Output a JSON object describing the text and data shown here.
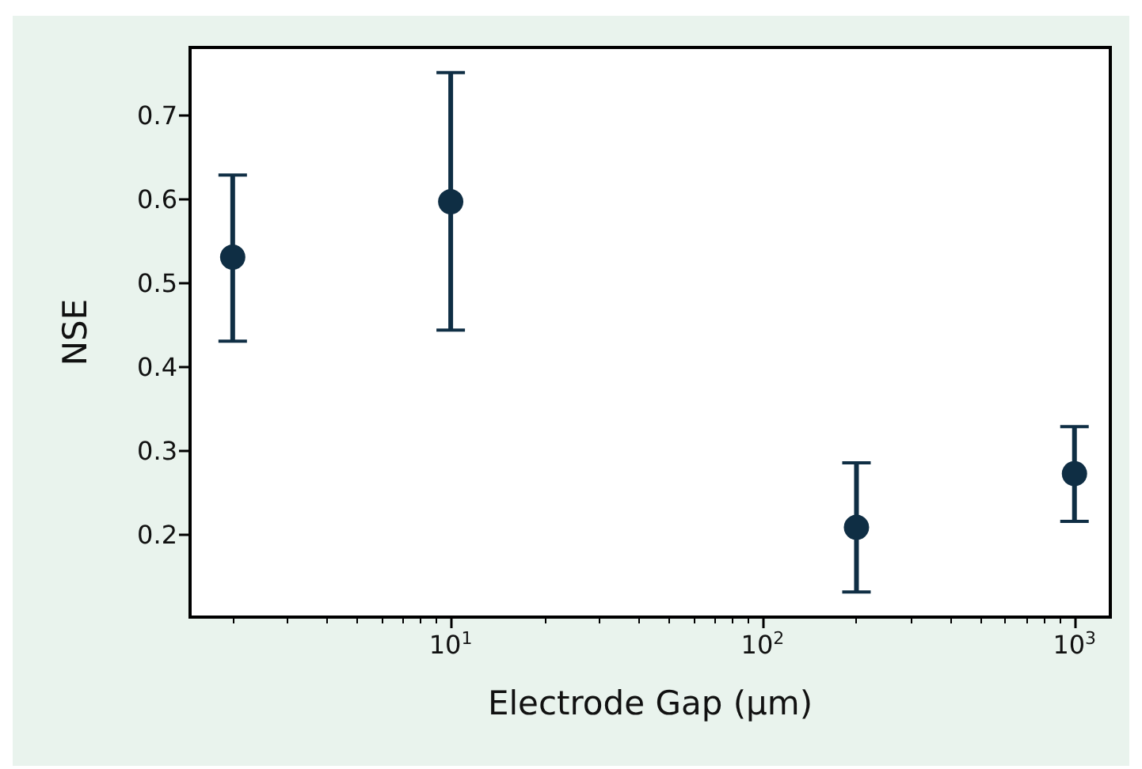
{
  "chart_data": {
    "type": "scatter",
    "xlabel": "Electrode Gap (µm)",
    "ylabel": "NSE",
    "log": "x",
    "x": [
      2,
      10,
      200,
      1000
    ],
    "series": [
      {
        "color": "#0f2e44",
        "values": [
          0.531,
          0.597,
          0.209,
          0.273
        ],
        "errors": [
          [
            0.431,
            0.629
          ],
          [
            0.444,
            0.751
          ],
          [
            0.132,
            0.286
          ],
          [
            0.216,
            0.329
          ]
        ]
      }
    ],
    "xlim": [
      1.46,
      1303
    ],
    "ylim": [
      0.102,
      0.781
    ],
    "xticks": [
      {
        "value": 10,
        "label": "10$^{1}$"
      },
      {
        "value": 100,
        "label": "10$^{2}$"
      },
      {
        "value": 1000,
        "label": "10$^{3}$"
      },
      {
        "value": 2,
        "label": null
      },
      {
        "value": 3,
        "label": null
      },
      {
        "value": 4,
        "label": null
      },
      {
        "value": 5,
        "label": null
      },
      {
        "value": 6,
        "label": null
      },
      {
        "value": 7,
        "label": null
      },
      {
        "value": 8,
        "label": null
      },
      {
        "value": 9,
        "label": null
      },
      {
        "value": 20,
        "label": null
      },
      {
        "value": 30,
        "label": null
      },
      {
        "value": 40,
        "label": null
      },
      {
        "value": 50,
        "label": null
      },
      {
        "value": 60,
        "label": null
      },
      {
        "value": 70,
        "label": null
      },
      {
        "value": 80,
        "label": null
      },
      {
        "value": 90,
        "label": null
      },
      {
        "value": 200,
        "label": null
      },
      {
        "value": 300,
        "label": null
      },
      {
        "value": 400,
        "label": null
      },
      {
        "value": 500,
        "label": null
      },
      {
        "value": 600,
        "label": null
      },
      {
        "value": 700,
        "label": null
      },
      {
        "value": 800,
        "label": null
      },
      {
        "value": 900,
        "label": null
      }
    ],
    "yticks": [
      0.2,
      0.3,
      0.4,
      0.5,
      0.6,
      0.7
    ],
    "grid": false,
    "marker": "circle"
  }
}
